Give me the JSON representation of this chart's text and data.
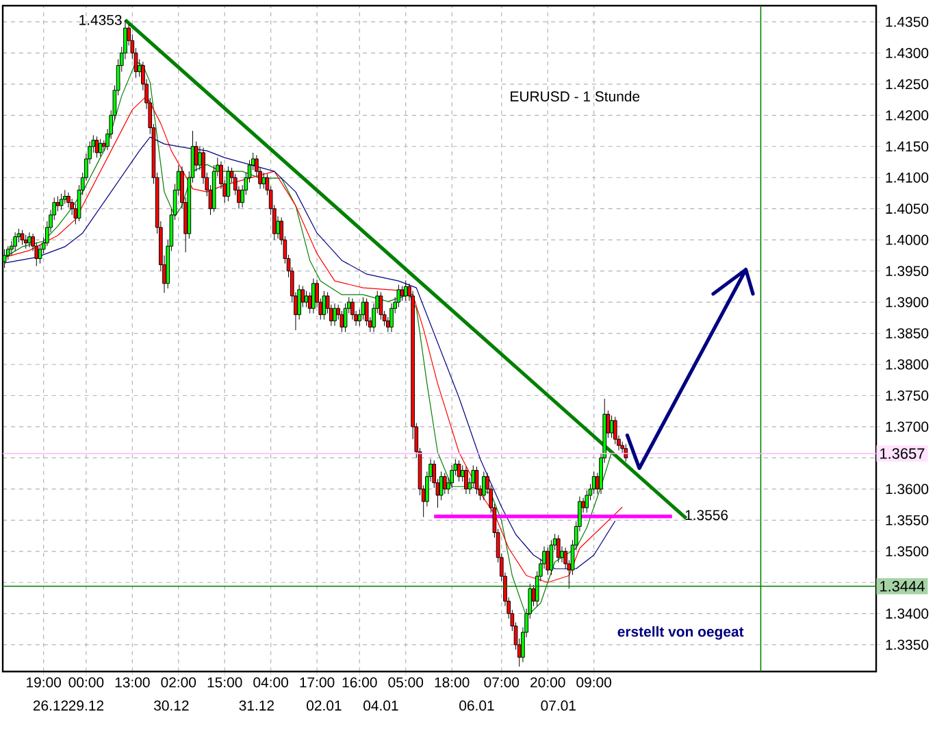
{
  "chart_data": {
    "type": "candlestick",
    "title": "EURUSD - 1 Stunde",
    "categories": [
      null,
      null,
      null,
      null,
      null,
      null,
      null,
      null,
      null,
      null,
      null,
      "19:00",
      null,
      null,
      null,
      null,
      null,
      null,
      null,
      null,
      null,
      null,
      null,
      "00:00",
      null,
      null,
      null,
      null,
      null,
      null,
      null,
      null,
      null,
      null,
      null,
      null,
      "13:00",
      null,
      null,
      null,
      null,
      null,
      null,
      null,
      null,
      null,
      null,
      null,
      null,
      "02:00",
      null,
      null,
      null,
      null,
      null,
      null,
      null,
      null,
      null,
      null,
      null,
      null,
      "15:00",
      null,
      null,
      null,
      null,
      null,
      null,
      null,
      null,
      null,
      null,
      null,
      null,
      "04:00",
      null,
      null,
      null,
      null,
      null,
      null,
      null,
      null,
      null,
      null,
      null,
      null,
      "17:00",
      null,
      null,
      null,
      null,
      null,
      null,
      null,
      null,
      null,
      null,
      null,
      "16:00",
      null,
      null,
      null,
      null,
      null,
      null,
      null,
      null,
      null,
      null,
      null,
      null,
      "05:00",
      null,
      null,
      null,
      null,
      null,
      null,
      null,
      null,
      null,
      null,
      null,
      null,
      "18:00",
      null,
      null,
      null,
      null,
      null,
      null,
      null,
      null,
      null,
      null,
      null,
      null,
      null,
      "07:00",
      null,
      null,
      null,
      null,
      null,
      null,
      null,
      null,
      null,
      null,
      null,
      null,
      "20:00",
      null,
      null,
      null,
      null,
      null,
      null,
      null,
      null,
      null,
      null,
      null,
      null,
      "09:00",
      null,
      null,
      null,
      null,
      null,
      null,
      null,
      null,
      null,
      null,
      null,
      null,
      null,
      null,
      null,
      null,
      null,
      null,
      null,
      null,
      null,
      null,
      null,
      null,
      null,
      null,
      null,
      null,
      null,
      null,
      null,
      null,
      null,
      null,
      null,
      null,
      null,
      null,
      null,
      null,
      null,
      null,
      null,
      null,
      null,
      null,
      null,
      null,
      null,
      null,
      null,
      null,
      null,
      null,
      null,
      null,
      null,
      null,
      null,
      null,
      null,
      null,
      null,
      null,
      null,
      null,
      null,
      null,
      null,
      null,
      null,
      null,
      null,
      null,
      null,
      null,
      null,
      null,
      null
    ],
    "ohlc": [
      [
        1.3965,
        1.3985,
        1.3955,
        1.3975
      ],
      [
        1.3975,
        1.399,
        1.3968,
        1.3985
      ],
      [
        1.3985,
        1.3998,
        1.3975,
        1.399
      ],
      [
        1.399,
        1.4012,
        1.3982,
        1.4005
      ],
      [
        1.4005,
        1.4018,
        1.3996,
        1.401
      ],
      [
        1.401,
        1.4016,
        1.3992,
        1.4
      ],
      [
        1.4,
        1.4008,
        1.3986,
        1.3995
      ],
      [
        1.3995,
        1.4012,
        1.3988,
        1.4005
      ],
      [
        1.4005,
        1.401,
        1.3982,
        1.399
      ],
      [
        1.399,
        1.3996,
        1.3958,
        1.397
      ],
      [
        1.397,
        1.3992,
        1.3962,
        1.3985
      ],
      [
        1.3985,
        1.4004,
        1.3978,
        1.3995
      ],
      [
        1.3995,
        1.403,
        1.399,
        1.402
      ],
      [
        1.402,
        1.4048,
        1.4012,
        1.404
      ],
      [
        1.404,
        1.4068,
        1.4032,
        1.406
      ],
      [
        1.406,
        1.407,
        1.4046,
        1.4055
      ],
      [
        1.4055,
        1.4074,
        1.4048,
        1.4065
      ],
      [
        1.4065,
        1.408,
        1.4058,
        1.407
      ],
      [
        1.407,
        1.4076,
        1.4052,
        1.406
      ],
      [
        1.406,
        1.4066,
        1.404,
        1.405
      ],
      [
        1.405,
        1.4058,
        1.4025,
        1.4035
      ],
      [
        1.4035,
        1.4088,
        1.403,
        1.408
      ],
      [
        1.408,
        1.4108,
        1.4072,
        1.41
      ],
      [
        1.41,
        1.4138,
        1.4095,
        1.413
      ],
      [
        1.413,
        1.4158,
        1.4122,
        1.415
      ],
      [
        1.415,
        1.4168,
        1.414,
        1.416
      ],
      [
        1.416,
        1.4166,
        1.4132,
        1.414
      ],
      [
        1.414,
        1.4162,
        1.4134,
        1.4155
      ],
      [
        1.4155,
        1.416,
        1.4142,
        1.415
      ],
      [
        1.415,
        1.4178,
        1.4144,
        1.417
      ],
      [
        1.417,
        1.4208,
        1.4162,
        1.42
      ],
      [
        1.42,
        1.4248,
        1.4192,
        1.424
      ],
      [
        1.424,
        1.429,
        1.4232,
        1.428
      ],
      [
        1.428,
        1.431,
        1.427,
        1.43
      ],
      [
        1.43,
        1.4353,
        1.429,
        1.434
      ],
      [
        1.434,
        1.4346,
        1.4312,
        1.432
      ],
      [
        1.432,
        1.433,
        1.429,
        1.43
      ],
      [
        1.43,
        1.4308,
        1.426,
        1.427
      ],
      [
        1.427,
        1.429,
        1.4262,
        1.428
      ],
      [
        1.428,
        1.4286,
        1.424,
        1.425
      ],
      [
        1.425,
        1.4258,
        1.421,
        1.422
      ],
      [
        1.422,
        1.4228,
        1.417,
        1.418
      ],
      [
        1.418,
        1.4186,
        1.409,
        1.41
      ],
      [
        1.41,
        1.4108,
        1.401,
        1.402
      ],
      [
        1.402,
        1.403,
        1.395,
        1.396
      ],
      [
        1.396,
        1.3975,
        1.3915,
        1.393
      ],
      [
        1.393,
        1.4,
        1.3922,
        1.399
      ],
      [
        1.399,
        1.405,
        1.3982,
        1.404
      ],
      [
        1.404,
        1.409,
        1.4032,
        1.408
      ],
      [
        1.408,
        1.412,
        1.4072,
        1.411
      ],
      [
        1.411,
        1.4118,
        1.405,
        1.406
      ],
      [
        1.406,
        1.4068,
        1.398,
        1.401
      ],
      [
        1.401,
        1.411,
        1.4002,
        1.41
      ],
      [
        1.41,
        1.4175,
        1.4092,
        1.415
      ],
      [
        1.415,
        1.4158,
        1.411,
        1.412
      ],
      [
        1.412,
        1.415,
        1.4112,
        1.414
      ],
      [
        1.414,
        1.4148,
        1.409,
        1.41
      ],
      [
        1.41,
        1.4108,
        1.407,
        1.408
      ],
      [
        1.408,
        1.4088,
        1.404,
        1.405
      ],
      [
        1.405,
        1.412,
        1.4045,
        1.411
      ],
      [
        1.411,
        1.4132,
        1.4102,
        1.412
      ],
      [
        1.412,
        1.4126,
        1.4082,
        1.409
      ],
      [
        1.409,
        1.4096,
        1.406,
        1.407
      ],
      [
        1.407,
        1.4118,
        1.4062,
        1.411
      ],
      [
        1.411,
        1.4116,
        1.4092,
        1.41
      ],
      [
        1.41,
        1.4106,
        1.4072,
        1.408
      ],
      [
        1.408,
        1.4086,
        1.405,
        1.406
      ],
      [
        1.406,
        1.4088,
        1.4052,
        1.408
      ],
      [
        1.408,
        1.4108,
        1.4072,
        1.41
      ],
      [
        1.41,
        1.4128,
        1.4092,
        1.412
      ],
      [
        1.412,
        1.414,
        1.4112,
        1.413
      ],
      [
        1.413,
        1.4136,
        1.4102,
        1.411
      ],
      [
        1.411,
        1.4116,
        1.4082,
        1.409
      ],
      [
        1.409,
        1.4108,
        1.4082,
        1.41
      ],
      [
        1.41,
        1.4106,
        1.4072,
        1.408
      ],
      [
        1.408,
        1.4086,
        1.404,
        1.405
      ],
      [
        1.405,
        1.4056,
        1.4,
        1.401
      ],
      [
        1.401,
        1.4038,
        1.4002,
        1.403
      ],
      [
        1.403,
        1.4036,
        1.3992,
        1.4
      ],
      [
        1.4,
        1.4006,
        1.3962,
        1.397
      ],
      [
        1.397,
        1.3976,
        1.394,
        1.395
      ],
      [
        1.395,
        1.3956,
        1.39,
        1.391
      ],
      [
        1.391,
        1.3916,
        1.3855,
        1.388
      ],
      [
        1.388,
        1.3928,
        1.3872,
        1.392
      ],
      [
        1.392,
        1.3926,
        1.3892,
        1.39
      ],
      [
        1.39,
        1.3918,
        1.3892,
        1.391
      ],
      [
        1.391,
        1.3916,
        1.3882,
        1.389
      ],
      [
        1.389,
        1.3938,
        1.3882,
        1.393
      ],
      [
        1.393,
        1.3936,
        1.3892,
        1.39
      ],
      [
        1.39,
        1.3906,
        1.3872,
        1.388
      ],
      [
        1.388,
        1.3918,
        1.3872,
        1.391
      ],
      [
        1.391,
        1.3916,
        1.3882,
        1.389
      ],
      [
        1.389,
        1.3896,
        1.3862,
        1.387
      ],
      [
        1.387,
        1.3898,
        1.3862,
        1.389
      ],
      [
        1.389,
        1.3896,
        1.3872,
        1.388
      ],
      [
        1.388,
        1.3886,
        1.3852,
        1.386
      ],
      [
        1.386,
        1.3898,
        1.3852,
        1.389
      ],
      [
        1.389,
        1.3908,
        1.3882,
        1.39
      ],
      [
        1.39,
        1.3906,
        1.3872,
        1.388
      ],
      [
        1.388,
        1.3886,
        1.3862,
        1.387
      ],
      [
        1.387,
        1.3888,
        1.3862,
        1.388
      ],
      [
        1.388,
        1.3908,
        1.3872,
        1.39
      ],
      [
        1.39,
        1.3906,
        1.3862,
        1.387
      ],
      [
        1.387,
        1.3876,
        1.3852,
        1.386
      ],
      [
        1.386,
        1.3898,
        1.3852,
        1.389
      ],
      [
        1.389,
        1.3918,
        1.3882,
        1.391
      ],
      [
        1.391,
        1.3916,
        1.3872,
        1.388
      ],
      [
        1.388,
        1.3886,
        1.3862,
        1.387
      ],
      [
        1.387,
        1.3876,
        1.3852,
        1.386
      ],
      [
        1.386,
        1.3898,
        1.3852,
        1.389
      ],
      [
        1.389,
        1.3908,
        1.3882,
        1.39
      ],
      [
        1.39,
        1.3928,
        1.3892,
        1.392
      ],
      [
        1.392,
        1.3926,
        1.3902,
        1.391
      ],
      [
        1.391,
        1.3935,
        1.3902,
        1.3925
      ],
      [
        1.3925,
        1.393,
        1.3902,
        1.391
      ],
      [
        1.391,
        1.3918,
        1.368,
        1.37
      ],
      [
        1.37,
        1.3706,
        1.365,
        1.366
      ],
      [
        1.366,
        1.3666,
        1.359,
        1.36
      ],
      [
        1.36,
        1.3606,
        1.3555,
        1.358
      ],
      [
        1.358,
        1.3628,
        1.3572,
        1.362
      ],
      [
        1.362,
        1.3648,
        1.3612,
        1.364
      ],
      [
        1.364,
        1.3646,
        1.3602,
        1.361
      ],
      [
        1.361,
        1.3616,
        1.357,
        1.359
      ],
      [
        1.359,
        1.3628,
        1.3582,
        1.362
      ],
      [
        1.362,
        1.3626,
        1.3592,
        1.36
      ],
      [
        1.36,
        1.3618,
        1.3592,
        1.361
      ],
      [
        1.361,
        1.3638,
        1.3602,
        1.363
      ],
      [
        1.363,
        1.3648,
        1.3622,
        1.364
      ],
      [
        1.364,
        1.3646,
        1.3612,
        1.362
      ],
      [
        1.362,
        1.3638,
        1.3612,
        1.363
      ],
      [
        1.363,
        1.3636,
        1.3592,
        1.36
      ],
      [
        1.36,
        1.3618,
        1.3592,
        1.361
      ],
      [
        1.361,
        1.3638,
        1.3602,
        1.363
      ],
      [
        1.363,
        1.3636,
        1.3592,
        1.36
      ],
      [
        1.36,
        1.3606,
        1.3582,
        1.359
      ],
      [
        1.359,
        1.3628,
        1.3582,
        1.362
      ],
      [
        1.362,
        1.3626,
        1.3592,
        1.36
      ],
      [
        1.36,
        1.3606,
        1.3562,
        1.357
      ],
      [
        1.357,
        1.3576,
        1.3522,
        1.353
      ],
      [
        1.353,
        1.3536,
        1.3482,
        1.349
      ],
      [
        1.349,
        1.3496,
        1.3452,
        1.346
      ],
      [
        1.346,
        1.3466,
        1.3412,
        1.342
      ],
      [
        1.342,
        1.3426,
        1.3392,
        1.34
      ],
      [
        1.34,
        1.3406,
        1.3372,
        1.338
      ],
      [
        1.338,
        1.3386,
        1.3342,
        1.335
      ],
      [
        1.335,
        1.336,
        1.3315,
        1.333
      ],
      [
        1.333,
        1.3378,
        1.3322,
        1.337
      ],
      [
        1.337,
        1.3408,
        1.3362,
        1.34
      ],
      [
        1.34,
        1.3448,
        1.3392,
        1.344
      ],
      [
        1.344,
        1.3446,
        1.3412,
        1.342
      ],
      [
        1.342,
        1.3468,
        1.3412,
        1.346
      ],
      [
        1.346,
        1.3488,
        1.3452,
        1.348
      ],
      [
        1.348,
        1.3508,
        1.3472,
        1.35
      ],
      [
        1.35,
        1.3506,
        1.3462,
        1.347
      ],
      [
        1.347,
        1.3518,
        1.3462,
        1.351
      ],
      [
        1.351,
        1.3528,
        1.3502,
        1.352
      ],
      [
        1.352,
        1.3526,
        1.3482,
        1.349
      ],
      [
        1.349,
        1.3508,
        1.3482,
        1.35
      ],
      [
        1.35,
        1.3506,
        1.3472,
        1.348
      ],
      [
        1.348,
        1.3486,
        1.344,
        1.347
      ],
      [
        1.347,
        1.3518,
        1.3462,
        1.351
      ],
      [
        1.351,
        1.3548,
        1.3502,
        1.354
      ],
      [
        1.354,
        1.3588,
        1.3532,
        1.358
      ],
      [
        1.358,
        1.3586,
        1.3562,
        1.357
      ],
      [
        1.357,
        1.3598,
        1.3562,
        1.359
      ],
      [
        1.359,
        1.3608,
        1.3582,
        1.36
      ],
      [
        1.36,
        1.3628,
        1.3592,
        1.362
      ],
      [
        1.362,
        1.3626,
        1.3592,
        1.36
      ],
      [
        1.36,
        1.3658,
        1.3592,
        1.365
      ],
      [
        1.365,
        1.3745,
        1.3642,
        1.372
      ],
      [
        1.372,
        1.3726,
        1.3682,
        1.369
      ],
      [
        1.369,
        1.3718,
        1.3682,
        1.371
      ],
      [
        1.371,
        1.3716,
        1.3672,
        1.368
      ],
      [
        1.368,
        1.3686,
        1.3662,
        1.367
      ],
      [
        1.367,
        1.3676,
        1.3658,
        1.3665
      ],
      [
        1.3665,
        1.3672,
        1.3644,
        1.365
      ],
      null,
      null,
      null,
      null,
      null,
      null,
      null,
      null,
      null,
      null,
      null,
      null,
      null,
      null,
      null,
      null,
      null,
      null,
      null,
      null,
      null,
      null,
      null,
      null,
      null,
      null,
      null,
      null,
      null,
      null,
      null,
      null,
      null,
      null,
      null,
      null,
      null,
      null,
      null,
      null,
      null,
      null,
      null,
      null,
      null,
      null,
      null,
      null,
      null,
      null,
      null,
      null,
      null,
      null,
      null,
      null,
      null,
      null,
      null,
      null,
      null,
      null,
      null,
      null,
      null,
      null,
      null,
      null,
      null,
      null
    ],
    "series": [
      {
        "type": "line",
        "color": "#008000",
        "values": [
          1.3972,
          null,
          null,
          null,
          null,
          1.3989,
          null,
          null,
          null,
          null,
          null,
          1.3998,
          null,
          null,
          null,
          1.4022,
          null,
          null,
          1.4044,
          null,
          null,
          null,
          1.4077,
          null,
          null,
          null,
          1.4121,
          null,
          null,
          1.4154,
          null,
          null,
          null,
          1.4231,
          null,
          null,
          null,
          1.4286,
          null,
          1.428,
          null,
          1.4253,
          null,
          1.4165,
          null,
          1.4077,
          null,
          null,
          1.4038,
          null,
          1.4055,
          null,
          null,
          1.411,
          null,
          null,
          null,
          1.4121,
          null,
          null,
          null,
          1.411,
          null,
          null,
          null,
          null,
          null,
          1.411,
          null,
          null,
          null,
          null,
          1.4099,
          null,
          null,
          null,
          null,
          null,
          1.4099,
          null,
          null,
          null,
          1.4055,
          null,
          null,
          null,
          1.3967,
          null,
          null,
          1.3934,
          null,
          null,
          null,
          null,
          null,
          1.3912,
          null,
          null,
          null,
          null,
          null,
          1.3912,
          null,
          null,
          null,
          null,
          null,
          null,
          1.3901,
          null,
          null,
          null,
          null,
          null,
          1.3912,
          null,
          1.389,
          null,
          null,
          1.3769,
          null,
          null,
          1.3659,
          null,
          null,
          null,
          1.3604,
          null,
          null,
          null,
          null,
          1.3604,
          null,
          null,
          null,
          null,
          null,
          1.3593,
          null,
          null,
          1.3549,
          null,
          null,
          1.3461,
          null,
          null,
          null,
          1.3395,
          null,
          null,
          null,
          1.3417,
          null,
          null,
          null,
          1.3483,
          null,
          null,
          null,
          null,
          null,
          1.3505,
          null,
          null,
          1.3538,
          null,
          null,
          null,
          1.3604,
          null,
          null,
          1.3659,
          null,
          null,
          null,
          null,
          null,
          null,
          null,
          null,
          null,
          null,
          null,
          null,
          null,
          null,
          null,
          null,
          null,
          null,
          null,
          null,
          null,
          null,
          null,
          null,
          null,
          null,
          null,
          null,
          null,
          null,
          null,
          null,
          null,
          null,
          null,
          null,
          null,
          null,
          null,
          null,
          null,
          null,
          null,
          null,
          null,
          null,
          null,
          null,
          null,
          null,
          null,
          null,
          null,
          null,
          null,
          null,
          null,
          null,
          null,
          null,
          null,
          null,
          null,
          null,
          null,
          null,
          null,
          null,
          null,
          null,
          null,
          null,
          null,
          null
        ]
      },
      {
        "type": "line",
        "color": "#ff0000",
        "values": [
          1.3972,
          null,
          null,
          null,
          null,
          null,
          null,
          1.3983,
          null,
          null,
          null,
          null,
          null,
          null,
          null,
          1.4007,
          null,
          null,
          null,
          null,
          1.4033,
          null,
          null,
          null,
          1.4077,
          null,
          null,
          null,
          null,
          null,
          1.4143,
          null,
          null,
          null,
          null,
          null,
          1.4209,
          null,
          null,
          null,
          1.4231,
          null,
          null,
          null,
          1.4187,
          null,
          null,
          1.4143,
          null,
          null,
          null,
          null,
          null,
          1.4082,
          null,
          null,
          null,
          1.4077,
          null,
          null,
          null,
          null,
          1.4088,
          null,
          null,
          null,
          null,
          null,
          null,
          1.4099,
          null,
          null,
          null,
          null,
          null,
          null,
          1.411,
          null,
          null,
          null,
          null,
          null,
          1.4055,
          null,
          null,
          null,
          null,
          null,
          1.3978,
          null,
          null,
          null,
          null,
          1.3934,
          null,
          null,
          null,
          null,
          null,
          null,
          null,
          1.3923,
          null,
          null,
          null,
          null,
          null,
          null,
          null,
          null,
          null,
          1.3919,
          null,
          null,
          null,
          1.3912,
          null,
          null,
          1.3857,
          null,
          null,
          null,
          1.3769,
          null,
          null,
          null,
          null,
          null,
          1.3659,
          null,
          null,
          null,
          null,
          null,
          1.3593,
          null,
          null,
          null,
          1.356,
          null,
          null,
          null,
          1.3505,
          null,
          null,
          null,
          null,
          1.3461,
          null,
          null,
          null,
          null,
          null,
          1.345,
          null,
          null,
          null,
          null,
          null,
          1.3461,
          null,
          null,
          1.3505,
          null,
          null,
          null,
          null,
          null,
          1.3538,
          null,
          null,
          null,
          null,
          null,
          1.3571,
          null,
          null,
          null,
          null,
          null,
          null,
          null,
          null,
          null,
          null,
          null,
          null,
          null,
          null,
          null,
          null,
          null,
          null,
          null,
          null,
          null,
          null,
          null,
          null,
          null,
          null,
          null,
          null,
          null,
          null,
          null,
          null,
          null,
          null,
          null,
          null,
          null,
          null,
          null,
          null,
          null,
          null,
          null,
          null,
          null,
          null,
          null,
          null,
          null,
          null,
          null,
          null,
          null,
          null,
          null,
          null,
          null,
          null,
          null,
          null,
          null,
          null,
          null,
          null,
          null,
          null,
          null,
          null,
          null,
          null,
          null
        ]
      },
      {
        "type": "line",
        "color": "#000080",
        "values": [
          1.3963,
          null,
          null,
          null,
          null,
          null,
          null,
          null,
          null,
          1.3972,
          null,
          null,
          null,
          null,
          null,
          null,
          null,
          1.3989,
          null,
          null,
          null,
          null,
          1.4011,
          null,
          null,
          null,
          null,
          null,
          null,
          null,
          1.4077,
          null,
          null,
          null,
          null,
          null,
          null,
          null,
          1.4143,
          null,
          null,
          1.4165,
          null,
          null,
          null,
          1.4154,
          null,
          null,
          null,
          null,
          null,
          1.4148,
          null,
          null,
          null,
          null,
          null,
          1.4143,
          null,
          null,
          null,
          null,
          1.4132,
          null,
          null,
          null,
          null,
          null,
          null,
          1.4121,
          null,
          null,
          null,
          null,
          null,
          null,
          1.411,
          null,
          null,
          null,
          null,
          null,
          1.4077,
          null,
          null,
          null,
          null,
          null,
          1.4011,
          null,
          null,
          null,
          null,
          null,
          null,
          1.3967,
          null,
          null,
          null,
          null,
          null,
          null,
          1.3945,
          null,
          null,
          null,
          null,
          null,
          null,
          null,
          null,
          1.3934,
          null,
          null,
          null,
          null,
          1.3923,
          null,
          null,
          null,
          null,
          null,
          1.3835,
          null,
          null,
          null,
          null,
          null,
          1.3747,
          null,
          null,
          null,
          null,
          null,
          1.3648,
          null,
          null,
          null,
          null,
          null,
          1.3571,
          null,
          null,
          null,
          1.3527,
          null,
          null,
          null,
          null,
          1.3494,
          null,
          null,
          null,
          null,
          null,
          1.3472,
          null,
          null,
          null,
          null,
          null,
          1.3472,
          null,
          null,
          null,
          null,
          1.3494,
          null,
          null,
          null,
          null,
          null,
          1.3549,
          null,
          null,
          null,
          null,
          null,
          null,
          null,
          null,
          null,
          null,
          null,
          null,
          null,
          null,
          null,
          null,
          null,
          null,
          null,
          null,
          null,
          null,
          null,
          null,
          null,
          null,
          null,
          null,
          null,
          null,
          null,
          null,
          null,
          null,
          null,
          null,
          null,
          null,
          null,
          null,
          null,
          null,
          null,
          null,
          null,
          null,
          null,
          null,
          null,
          null,
          null,
          null,
          null,
          null,
          null,
          null,
          null,
          null,
          null,
          null,
          null,
          null,
          null,
          null,
          null,
          null,
          null,
          null,
          null,
          null,
          null,
          null,
          null
        ]
      },
      {
        "type": "line",
        "color": "#008000",
        "values": [
          null,
          null,
          null,
          null,
          null,
          null,
          null,
          null,
          null,
          null,
          null,
          null,
          null,
          null,
          null,
          null,
          null,
          null,
          null,
          null,
          null,
          null,
          null,
          null,
          null,
          null,
          null,
          null,
          null,
          null,
          null,
          null,
          null,
          null,
          1.4353,
          null,
          null,
          null,
          null,
          null,
          null,
          null,
          null,
          null,
          null,
          null,
          null,
          null,
          null,
          null,
          null,
          null,
          null,
          null,
          null,
          null,
          null,
          null,
          null,
          null,
          null,
          null,
          null,
          null,
          null,
          null,
          null,
          null,
          null,
          null,
          null,
          null,
          null,
          null,
          null,
          null,
          null,
          null,
          null,
          null,
          null,
          null,
          null,
          null,
          null,
          null,
          null,
          null,
          null,
          null,
          null,
          null,
          null,
          null,
          null,
          null,
          null,
          null,
          null,
          null,
          null,
          null,
          null,
          null,
          null,
          null,
          null,
          null,
          null,
          null,
          null,
          null,
          null,
          null,
          null,
          null,
          null,
          null,
          null,
          null,
          null,
          null,
          null,
          null,
          null,
          null,
          null,
          null,
          null,
          null,
          null,
          null,
          null,
          null,
          null,
          null,
          null,
          null,
          null,
          null,
          null,
          null,
          null,
          null,
          null,
          null,
          null,
          null,
          null,
          null,
          null,
          null,
          null,
          null,
          null,
          null,
          null,
          null,
          null,
          null,
          null,
          null,
          null,
          null,
          null,
          null,
          null,
          null,
          null,
          null,
          null,
          null,
          null,
          null,
          null,
          null,
          null,
          null,
          null,
          null,
          null,
          null,
          null,
          null,
          null,
          null,
          null,
          null,
          null,
          null,
          null,
          null,
          1.3553,
          null,
          null,
          null,
          null,
          null,
          null,
          null,
          null,
          null,
          null,
          null,
          null,
          null,
          null,
          null,
          null,
          null,
          null,
          null,
          null,
          null,
          null,
          null,
          null,
          null,
          null,
          null,
          null,
          null,
          null,
          null,
          null,
          null,
          null,
          null,
          null,
          null,
          null,
          null,
          null,
          null,
          null,
          null,
          null,
          null,
          null,
          null,
          null,
          null,
          null,
          null,
          null,
          null
        ]
      },
      {
        "type": "line",
        "color": "#ff00ff",
        "values": [
          null,
          null,
          null,
          null,
          null,
          null,
          null,
          null,
          null,
          null,
          null,
          null,
          null,
          null,
          null,
          null,
          null,
          null,
          null,
          null,
          null,
          null,
          null,
          null,
          null,
          null,
          null,
          null,
          null,
          null,
          null,
          null,
          null,
          null,
          null,
          null,
          null,
          null,
          null,
          null,
          null,
          null,
          null,
          null,
          null,
          null,
          null,
          null,
          null,
          null,
          null,
          null,
          null,
          null,
          null,
          null,
          null,
          null,
          null,
          null,
          null,
          null,
          null,
          null,
          null,
          null,
          null,
          null,
          null,
          null,
          null,
          null,
          null,
          null,
          null,
          null,
          null,
          null,
          null,
          null,
          null,
          null,
          null,
          null,
          null,
          null,
          null,
          null,
          null,
          null,
          null,
          null,
          null,
          null,
          null,
          null,
          null,
          null,
          null,
          null,
          null,
          null,
          null,
          null,
          null,
          null,
          null,
          null,
          null,
          null,
          null,
          null,
          null,
          null,
          null,
          null,
          null,
          null,
          null,
          null,
          null,
          1.3556,
          null,
          null,
          null,
          null,
          null,
          null,
          null,
          null,
          null,
          null,
          null,
          null,
          null,
          null,
          null,
          null,
          null,
          null,
          null,
          null,
          null,
          null,
          null,
          null,
          null,
          null,
          null,
          null,
          null,
          null,
          null,
          null,
          null,
          null,
          null,
          null,
          null,
          null,
          null,
          null,
          null,
          null,
          null,
          null,
          null,
          null,
          null,
          null,
          null,
          null,
          null,
          null,
          null,
          null,
          null,
          null,
          null,
          null,
          null,
          null,
          null,
          null,
          null,
          null,
          null,
          null,
          1.3556,
          null,
          null,
          null,
          null,
          null,
          null,
          null,
          null,
          null,
          null,
          null,
          null,
          null,
          null,
          null,
          null,
          null,
          null,
          null,
          null,
          null,
          null,
          null,
          null,
          null,
          null,
          null,
          null,
          null,
          null,
          null,
          null,
          null,
          null,
          null,
          null,
          null,
          null,
          null,
          null,
          null,
          null,
          null,
          null,
          null,
          null,
          null,
          null,
          null,
          null,
          null,
          null,
          null,
          null,
          null,
          null,
          null
        ]
      }
    ],
    "ylim": [
      1.3307,
      1.4376
    ],
    "yticks": [
      {
        "value": 1.335,
        "label": "1.3350"
      },
      {
        "value": 1.34,
        "label": "1.3400"
      },
      {
        "value": 1.345,
        "label": null
      },
      {
        "value": 1.35,
        "label": "1.3500"
      },
      {
        "value": 1.355,
        "label": "1.3550"
      },
      {
        "value": 1.36,
        "label": "1.3600"
      },
      {
        "value": 1.365,
        "label": null
      },
      {
        "value": 1.37,
        "label": "1.3700"
      },
      {
        "value": 1.375,
        "label": "1.3750"
      },
      {
        "value": 1.38,
        "label": "1.3800"
      },
      {
        "value": 1.385,
        "label": "1.3850"
      },
      {
        "value": 1.39,
        "label": "1.3900"
      },
      {
        "value": 1.395,
        "label": "1.3950"
      },
      {
        "value": 1.4,
        "label": "1.4000"
      },
      {
        "value": 1.405,
        "label": "1.4050"
      },
      {
        "value": 1.41,
        "label": "1.4100"
      },
      {
        "value": 1.415,
        "label": "1.4150"
      },
      {
        "value": 1.42,
        "label": "1.4200"
      },
      {
        "value": 1.425,
        "label": "1.4250"
      },
      {
        "value": 1.43,
        "label": "1.4300"
      },
      {
        "value": 1.435,
        "label": "1.4350"
      }
    ],
    "grid": true,
    "ref_lines": [
      {
        "axis": "y",
        "value": 1.3657,
        "label": "1.3657",
        "color": "#ffb0ff"
      },
      {
        "axis": "y",
        "value": 1.3444,
        "label": "1.3444",
        "color": "#008000"
      }
    ],
    "annotations": [
      "1.4353",
      "1.3556",
      "erstellt von oegeat",
      "26.12",
      "29.12",
      "30.12",
      "31.12",
      "02.01",
      "04.01",
      "06.01",
      "07.01"
    ]
  }
}
